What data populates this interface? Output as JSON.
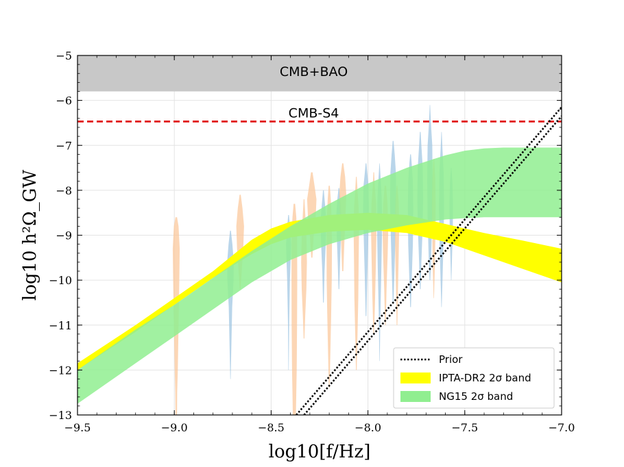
{
  "chart_data": {
    "type": "area",
    "title": "",
    "xlabel": "log10[f/Hz]",
    "ylabel": "log10 h²Ω_GW",
    "xlim": [
      -9.5,
      -7.0
    ],
    "ylim": [
      -13,
      -5
    ],
    "xticks": [
      -9.5,
      -9.0,
      -8.5,
      -8.0,
      -7.5,
      -7.0
    ],
    "xtick_labels": [
      "−9.5",
      "−9.0",
      "−8.5",
      "−8.0",
      "−7.5",
      "−7.0"
    ],
    "yticks": [
      -13,
      -12,
      -11,
      -10,
      -9,
      -8,
      -7,
      -6,
      -5
    ],
    "ytick_labels": [
      "−13",
      "−12",
      "−11",
      "−10",
      "−9",
      "−8",
      "−7",
      "−6",
      "−5"
    ],
    "grid": true,
    "colors": {
      "cmb_bao": "#c8c8c8",
      "cmb_s4": "#e00000",
      "ipta": "#ffff00",
      "ng15": "#90ee90",
      "violin_orange": "#fbc698",
      "violin_blue": "#9ec5e2",
      "prior": "#000000"
    },
    "regions": [
      {
        "name": "CMB+BAO",
        "y_from": -5.8,
        "y_to": -5.0
      }
    ],
    "hlines": [
      {
        "name": "CMB-S4",
        "y": -6.47,
        "style": "dashed"
      }
    ],
    "annotations": [
      {
        "text": "CMB+BAO",
        "x": -8.28,
        "y": -5.35
      },
      {
        "text": "CMB-S4",
        "x": -8.28,
        "y": -6.27
      }
    ],
    "bands": [
      {
        "name": "IPTA-DR2 2σ band",
        "x": [
          -9.5,
          -9.2,
          -9.0,
          -8.8,
          -8.6,
          -8.5,
          -8.4,
          -8.2,
          -8.0,
          -7.8,
          -7.6,
          -7.4,
          -7.2,
          -7.0
        ],
        "lower": [
          -12.0,
          -11.15,
          -10.55,
          -9.95,
          -9.42,
          -9.2,
          -9.05,
          -8.92,
          -8.88,
          -8.95,
          -9.15,
          -9.45,
          -9.75,
          -10.05
        ],
        "upper": [
          -11.85,
          -11.0,
          -10.4,
          -9.8,
          -9.1,
          -8.85,
          -8.7,
          -8.55,
          -8.5,
          -8.55,
          -8.75,
          -8.95,
          -9.12,
          -9.3
        ]
      },
      {
        "name": "NG15 2σ band",
        "x": [
          -9.5,
          -9.2,
          -9.0,
          -8.8,
          -8.6,
          -8.4,
          -8.2,
          -8.0,
          -7.8,
          -7.6,
          -7.5,
          -7.4,
          -7.3,
          -7.2,
          -7.0
        ],
        "lower": [
          -12.75,
          -11.85,
          -11.25,
          -10.65,
          -10.05,
          -9.55,
          -9.2,
          -8.95,
          -8.78,
          -8.65,
          -8.62,
          -8.6,
          -8.6,
          -8.6,
          -8.6
        ],
        "upper": [
          -12.0,
          -11.1,
          -10.55,
          -9.95,
          -9.35,
          -8.8,
          -8.3,
          -7.85,
          -7.5,
          -7.22,
          -7.12,
          -7.07,
          -7.05,
          -7.05,
          -7.05
        ]
      }
    ],
    "prior_lines": [
      {
        "name": "Prior",
        "x": [
          -8.37,
          -7.0
        ],
        "y": [
          -13.0,
          -6.15
        ]
      },
      {
        "name": "Prior",
        "x": [
          -8.33,
          -7.0
        ],
        "y": [
          -13.0,
          -6.35
        ]
      }
    ],
    "violins": [
      {
        "color": "violin_orange",
        "x": -8.99,
        "profile": [
          [
            -13.0,
            0.004
          ],
          [
            -12.5,
            0.005
          ],
          [
            -12.0,
            0.008
          ],
          [
            -11.0,
            0.012
          ],
          [
            -10.0,
            0.016
          ],
          [
            -9.3,
            0.018
          ],
          [
            -8.8,
            0.012
          ],
          [
            -8.6,
            0.004
          ]
        ]
      },
      {
        "color": "violin_blue",
        "x": -8.71,
        "profile": [
          [
            -12.2,
            0.001
          ],
          [
            -11.4,
            0.005
          ],
          [
            -10.6,
            0.009
          ],
          [
            -10.0,
            0.016
          ],
          [
            -9.6,
            0.017
          ],
          [
            -9.2,
            0.01
          ],
          [
            -8.9,
            0.002
          ]
        ]
      },
      {
        "color": "violin_orange",
        "x": -8.66,
        "profile": [
          [
            -10.2,
            0.002
          ],
          [
            -9.8,
            0.008
          ],
          [
            -9.3,
            0.016
          ],
          [
            -8.8,
            0.02
          ],
          [
            -8.4,
            0.012
          ],
          [
            -8.1,
            0.003
          ]
        ]
      },
      {
        "color": "violin_blue",
        "x": -8.41,
        "profile": [
          [
            -12.0,
            0.001
          ],
          [
            -11.0,
            0.003
          ],
          [
            -10.0,
            0.007
          ],
          [
            -9.2,
            0.013
          ],
          [
            -8.85,
            0.008
          ],
          [
            -8.55,
            0.002
          ]
        ]
      },
      {
        "color": "violin_orange",
        "x": -8.38,
        "profile": [
          [
            -13.0,
            0.008
          ],
          [
            -12.5,
            0.01
          ],
          [
            -12.0,
            0.012
          ],
          [
            -11.0,
            0.014
          ],
          [
            -10.0,
            0.015
          ],
          [
            -9.0,
            0.014
          ],
          [
            -8.6,
            0.01
          ],
          [
            -8.3,
            0.004
          ]
        ]
      },
      {
        "color": "violin_orange",
        "x": -8.33,
        "profile": [
          [
            -11.3,
            0.002
          ],
          [
            -10.8,
            0.006
          ],
          [
            -10.2,
            0.012
          ],
          [
            -9.6,
            0.015
          ],
          [
            -9.0,
            0.012
          ],
          [
            -8.6,
            0.007
          ],
          [
            -8.2,
            0.002
          ]
        ]
      },
      {
        "color": "violin_orange",
        "x": -8.29,
        "profile": [
          [
            -9.5,
            0.003
          ],
          [
            -9.0,
            0.01
          ],
          [
            -8.6,
            0.02
          ],
          [
            -8.2,
            0.024
          ],
          [
            -7.9,
            0.014
          ],
          [
            -7.6,
            0.004
          ]
        ]
      },
      {
        "color": "violin_blue",
        "x": -8.23,
        "profile": [
          [
            -10.5,
            0.002
          ],
          [
            -9.8,
            0.006
          ],
          [
            -9.2,
            0.012
          ],
          [
            -8.7,
            0.015
          ],
          [
            -8.3,
            0.008
          ],
          [
            -8.0,
            0.002
          ]
        ]
      },
      {
        "color": "violin_orange",
        "x": -8.2,
        "profile": [
          [
            -12.4,
            0.002
          ],
          [
            -11.6,
            0.006
          ],
          [
            -10.8,
            0.01
          ],
          [
            -10.0,
            0.013
          ],
          [
            -9.2,
            0.014
          ],
          [
            -8.6,
            0.012
          ],
          [
            -8.2,
            0.008
          ],
          [
            -7.9,
            0.003
          ]
        ]
      },
      {
        "color": "violin_blue",
        "x": -8.15,
        "profile": [
          [
            -10.2,
            0.002
          ],
          [
            -9.6,
            0.006
          ],
          [
            -9.0,
            0.011
          ],
          [
            -8.5,
            0.013
          ],
          [
            -8.2,
            0.008
          ],
          [
            -7.95,
            0.002
          ]
        ]
      },
      {
        "color": "violin_orange",
        "x": -8.13,
        "profile": [
          [
            -9.8,
            0.003
          ],
          [
            -9.2,
            0.008
          ],
          [
            -8.6,
            0.014
          ],
          [
            -8.1,
            0.018
          ],
          [
            -7.7,
            0.012
          ],
          [
            -7.4,
            0.003
          ]
        ]
      },
      {
        "color": "violin_orange",
        "x": -8.06,
        "profile": [
          [
            -12.0,
            0.002
          ],
          [
            -11.2,
            0.006
          ],
          [
            -10.4,
            0.01
          ],
          [
            -9.6,
            0.012
          ],
          [
            -8.9,
            0.014
          ],
          [
            -8.4,
            0.012
          ],
          [
            -8.0,
            0.006
          ],
          [
            -7.7,
            0.002
          ]
        ]
      },
      {
        "color": "violin_blue",
        "x": -8.01,
        "profile": [
          [
            -10.8,
            0.002
          ],
          [
            -10.0,
            0.006
          ],
          [
            -9.2,
            0.011
          ],
          [
            -8.4,
            0.015
          ],
          [
            -7.9,
            0.013
          ],
          [
            -7.6,
            0.006
          ],
          [
            -7.4,
            0.002
          ]
        ]
      },
      {
        "color": "violin_orange",
        "x": -7.97,
        "profile": [
          [
            -11.2,
            0.002
          ],
          [
            -10.4,
            0.007
          ],
          [
            -9.6,
            0.011
          ],
          [
            -8.9,
            0.014
          ],
          [
            -8.3,
            0.012
          ],
          [
            -7.9,
            0.005
          ],
          [
            -7.6,
            0.002
          ]
        ]
      },
      {
        "color": "violin_blue",
        "x": -7.94,
        "profile": [
          [
            -11.8,
            0.001
          ],
          [
            -10.8,
            0.004
          ],
          [
            -9.8,
            0.009
          ],
          [
            -8.9,
            0.013
          ],
          [
            -8.2,
            0.011
          ],
          [
            -7.7,
            0.005
          ],
          [
            -7.4,
            0.001
          ]
        ]
      },
      {
        "color": "violin_orange",
        "x": -7.91,
        "profile": [
          [
            -11.0,
            0.002
          ],
          [
            -10.2,
            0.006
          ],
          [
            -9.4,
            0.012
          ],
          [
            -8.8,
            0.015
          ],
          [
            -8.3,
            0.011
          ],
          [
            -7.9,
            0.004
          ]
        ]
      },
      {
        "color": "violin_blue",
        "x": -7.87,
        "profile": [
          [
            -10.5,
            0.002
          ],
          [
            -9.8,
            0.007
          ],
          [
            -9.0,
            0.012
          ],
          [
            -8.2,
            0.016
          ],
          [
            -7.6,
            0.014
          ],
          [
            -7.2,
            0.008
          ],
          [
            -6.9,
            0.002
          ]
        ]
      },
      {
        "color": "violin_orange",
        "x": -7.85,
        "profile": [
          [
            -11.0,
            0.002
          ],
          [
            -10.2,
            0.005
          ],
          [
            -9.4,
            0.009
          ],
          [
            -8.7,
            0.012
          ],
          [
            -8.2,
            0.008
          ],
          [
            -7.9,
            0.002
          ]
        ]
      },
      {
        "color": "violin_blue",
        "x": -7.78,
        "profile": [
          [
            -10.6,
            0.002
          ],
          [
            -10.0,
            0.006
          ],
          [
            -9.2,
            0.012
          ],
          [
            -8.4,
            0.014
          ],
          [
            -7.8,
            0.012
          ],
          [
            -7.4,
            0.006
          ],
          [
            -7.2,
            0.002
          ]
        ]
      },
      {
        "color": "violin_blue",
        "x": -7.73,
        "profile": [
          [
            -10.2,
            0.002
          ],
          [
            -9.6,
            0.006
          ],
          [
            -8.9,
            0.012
          ],
          [
            -8.2,
            0.015
          ],
          [
            -7.5,
            0.013
          ],
          [
            -7.0,
            0.006
          ],
          [
            -6.7,
            0.002
          ]
        ]
      },
      {
        "color": "violin_blue",
        "x": -7.68,
        "profile": [
          [
            -10.0,
            0.002
          ],
          [
            -9.4,
            0.007
          ],
          [
            -8.6,
            0.012
          ],
          [
            -7.8,
            0.014
          ],
          [
            -7.0,
            0.012
          ],
          [
            -6.5,
            0.005
          ],
          [
            -6.1,
            0.001
          ]
        ]
      },
      {
        "color": "violin_orange",
        "x": -7.66,
        "profile": [
          [
            -10.4,
            0.001
          ],
          [
            -9.8,
            0.005
          ],
          [
            -9.0,
            0.008
          ],
          [
            -8.3,
            0.01
          ],
          [
            -7.7,
            0.007
          ],
          [
            -7.3,
            0.002
          ]
        ]
      },
      {
        "color": "violin_blue",
        "x": -7.62,
        "profile": [
          [
            -10.6,
            0.001
          ],
          [
            -10.0,
            0.005
          ],
          [
            -9.2,
            0.01
          ],
          [
            -8.4,
            0.013
          ],
          [
            -7.6,
            0.011
          ],
          [
            -7.1,
            0.005
          ],
          [
            -6.7,
            0.001
          ]
        ]
      },
      {
        "color": "violin_blue",
        "x": -7.57,
        "profile": [
          [
            -10.0,
            0.001
          ],
          [
            -9.5,
            0.004
          ],
          [
            -8.9,
            0.008
          ],
          [
            -8.3,
            0.009
          ],
          [
            -7.8,
            0.006
          ],
          [
            -7.5,
            0.001
          ]
        ]
      }
    ],
    "legend": {
      "placement": "bottom-right",
      "entries": [
        {
          "label": "Prior",
          "kind": "dotted-line",
          "color": "prior"
        },
        {
          "label": "IPTA-DR2 2σ band",
          "kind": "patch",
          "color": "ipta"
        },
        {
          "label": "NG15 2σ band",
          "kind": "patch",
          "color": "ng15"
        }
      ]
    }
  }
}
